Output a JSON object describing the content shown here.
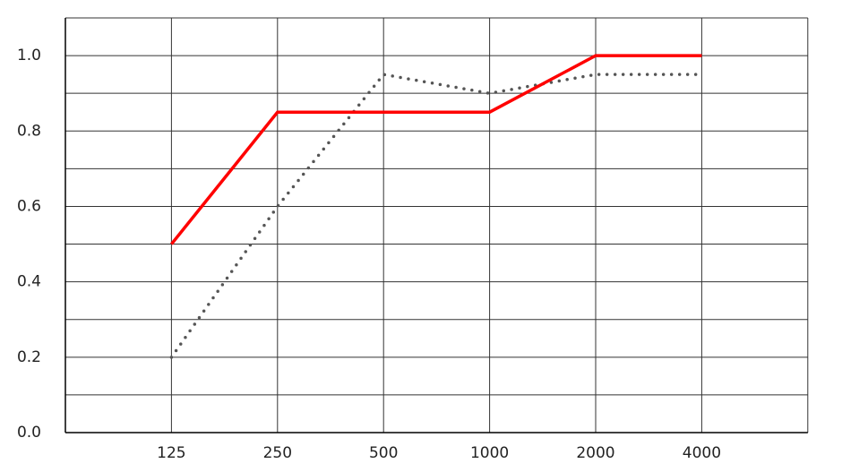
{
  "chart_data": {
    "type": "line",
    "categories": [
      "125",
      "250",
      "500",
      "1000",
      "2000",
      "4000"
    ],
    "series": [
      {
        "color": "#ff0000",
        "style": "solid",
        "values": [
          0.5,
          0.85,
          0.85,
          0.85,
          1.0,
          1.0
        ]
      },
      {
        "color": "#555555",
        "style": "dotted",
        "values": [
          0.2,
          0.6,
          0.95,
          0.9,
          0.95,
          0.95
        ]
      }
    ],
    "ylim": [
      0,
      1.1
    ],
    "yticks": [
      {
        "value": 0,
        "label": "0.0"
      },
      0.2,
      0.4,
      0.6,
      0.8,
      {
        "value": 1,
        "label": "1.0"
      }
    ],
    "ygrid": [
      0.1,
      0.3,
      0.5,
      0.7,
      0.9,
      1.1
    ],
    "grid": true
  }
}
